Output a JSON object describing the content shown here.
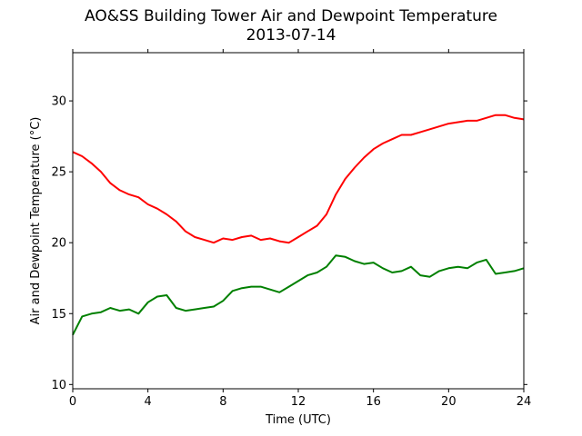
{
  "chart_data": {
    "type": "line",
    "title": "AO&SS Building Tower Air and Dewpoint Temperature",
    "subtitle": "2013-07-14",
    "xlabel": "Time (UTC)",
    "ylabel": "Air and Dewpoint Temperature (°C)",
    "xlim": [
      0,
      24
    ],
    "ylim": [
      9.7,
      33.4
    ],
    "xticks": [
      0,
      4,
      8,
      12,
      16,
      20,
      24
    ],
    "yticks": [
      10,
      15,
      20,
      25,
      30
    ],
    "grid": false,
    "legend": "none",
    "series": [
      {
        "color": "#ff0000",
        "x": [
          0,
          0.5,
          1,
          1.5,
          2,
          2.5,
          3,
          3.5,
          4,
          4.5,
          5,
          5.5,
          6,
          6.5,
          7,
          7.5,
          8,
          8.5,
          9,
          9.5,
          10,
          10.5,
          11,
          11.5,
          12,
          12.5,
          13,
          13.5,
          14,
          14.5,
          15,
          15.5,
          16,
          16.5,
          17,
          17.5,
          18,
          18.5,
          19,
          19.5,
          20,
          20.5,
          21,
          21.5,
          22,
          22.5,
          23,
          23.5,
          24
        ],
        "y": [
          26.4,
          26.1,
          25.6,
          25.0,
          24.2,
          23.7,
          23.4,
          23.2,
          22.7,
          22.4,
          22.0,
          21.5,
          20.8,
          20.4,
          20.2,
          20.0,
          20.3,
          20.2,
          20.4,
          20.5,
          20.2,
          20.3,
          20.1,
          20.0,
          20.4,
          20.8,
          21.2,
          22.0,
          23.4,
          24.5,
          25.3,
          26.0,
          26.6,
          27.0,
          27.3,
          27.6,
          27.6,
          27.8,
          28.0,
          28.2,
          28.4,
          28.5,
          28.6,
          28.6,
          28.8,
          29.0,
          29.0,
          28.8,
          28.7
        ]
      },
      {
        "color": "#008000",
        "x": [
          0,
          0.5,
          1,
          1.5,
          2,
          2.5,
          3,
          3.5,
          4,
          4.5,
          5,
          5.5,
          6,
          6.5,
          7,
          7.5,
          8,
          8.5,
          9,
          9.5,
          10,
          10.5,
          11,
          11.5,
          12,
          12.5,
          13,
          13.5,
          14,
          14.5,
          15,
          15.5,
          16,
          16.5,
          17,
          17.5,
          18,
          18.5,
          19,
          19.5,
          20,
          20.5,
          21,
          21.5,
          22,
          22.5,
          23,
          23.5,
          24
        ],
        "y": [
          13.5,
          14.8,
          15.0,
          15.1,
          15.4,
          15.2,
          15.3,
          15.0,
          15.8,
          16.2,
          16.3,
          15.4,
          15.2,
          15.3,
          15.4,
          15.5,
          15.9,
          16.6,
          16.8,
          16.9,
          16.9,
          16.7,
          16.5,
          16.9,
          17.3,
          17.7,
          17.9,
          18.3,
          19.1,
          19.0,
          18.7,
          18.5,
          18.6,
          18.2,
          17.9,
          18.0,
          18.3,
          17.7,
          17.6,
          18.0,
          18.2,
          18.3,
          18.2,
          18.6,
          18.8,
          17.8,
          17.9,
          18.0,
          18.2
        ]
      }
    ]
  }
}
